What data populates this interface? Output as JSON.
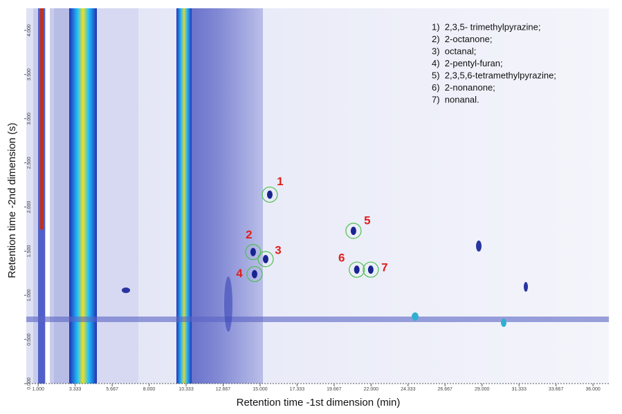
{
  "chart_data": {
    "type": "scatter",
    "x_label": "Retention time -1st dimension (min)",
    "y_label": "Retention time -2nd dimension (s)",
    "xlim": [
      0.25,
      37
    ],
    "ylim": [
      0,
      4.25
    ],
    "xticks": [
      {
        "value": 1,
        "label": "1.000"
      },
      {
        "value": 3.333,
        "label": "3.333"
      },
      {
        "value": 5.667,
        "label": "5.667"
      },
      {
        "value": 8,
        "label": "8.000"
      },
      {
        "value": 10.333,
        "label": "10.333"
      },
      {
        "value": 12.667,
        "label": "12.667"
      },
      {
        "value": 15,
        "label": "15.000"
      },
      {
        "value": 17.333,
        "label": "17.333"
      },
      {
        "value": 19.667,
        "label": "19.667"
      },
      {
        "value": 22,
        "label": "22.000"
      },
      {
        "value": 24.333,
        "label": "24.333"
      },
      {
        "value": 26.667,
        "label": "26.667"
      },
      {
        "value": 29,
        "label": "29.000"
      },
      {
        "value": 31.333,
        "label": "31.333"
      },
      {
        "value": 33.667,
        "label": "33.667"
      },
      {
        "value": 36,
        "label": "36.000"
      }
    ],
    "yticks": [
      {
        "value": 0,
        "label": "0.000"
      },
      {
        "value": 0.5,
        "label": "0.500"
      },
      {
        "value": 1,
        "label": "1.000"
      },
      {
        "value": 1.5,
        "label": "1.500"
      },
      {
        "value": 2,
        "label": "2.000"
      },
      {
        "value": 2.5,
        "label": "2.500"
      },
      {
        "value": 3,
        "label": "3.000"
      },
      {
        "value": 3.5,
        "label": "3.500"
      },
      {
        "value": 4,
        "label": "4.000"
      }
    ],
    "peaks": {
      "labels": [
        "1",
        "2",
        "3",
        "4",
        "5",
        "6",
        "7"
      ],
      "x": [
        15.61,
        14.56,
        15.35,
        14.65,
        20.89,
        21.1,
        21.98
      ],
      "y": [
        2.14,
        1.49,
        1.41,
        1.24,
        1.73,
        1.29,
        1.29
      ],
      "circle_color": "#4cc04c",
      "label_color": "#e0201c"
    },
    "legend": [
      "1)  2,3,5- trimethylpyrazine;",
      "2)  2-octanone;",
      "3)  octanal;",
      "4)  2-pentyl-furan;",
      "5)  2,3,5,6-tetramethylpyrazine;",
      "6)  2-nonanone;",
      "7)  nonanal."
    ]
  }
}
